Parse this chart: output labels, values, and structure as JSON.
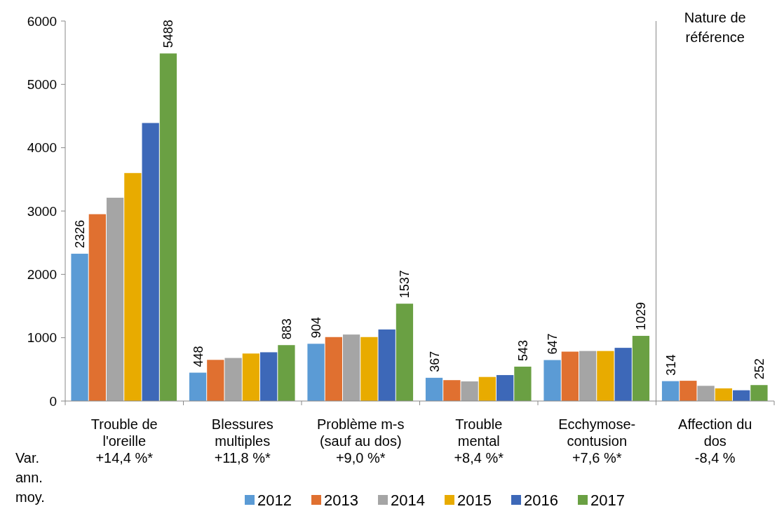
{
  "chart_data": {
    "type": "bar",
    "categories": [
      "Trouble de\nl'oreille\n+14,4 %*",
      "Blessures\nmultiples\n+11,8 %*",
      "Problème m-s\n(sauf au dos)\n+9,0 %*",
      "Trouble\nmental\n+8,4 %*",
      "Ecchymose-\ncontusion\n+7,6 %*",
      "Affection du\ndos\n-8,4 %"
    ],
    "series": [
      {
        "name": "2012",
        "color": "#5b9bd5",
        "values": [
          2326,
          448,
          904,
          367,
          647,
          314
        ],
        "value_labels": [
          "2326",
          "448",
          "904",
          "367",
          "647",
          "314"
        ]
      },
      {
        "name": "2013",
        "color": "#e07030",
        "values": [
          2950,
          650,
          1010,
          330,
          780,
          320
        ]
      },
      {
        "name": "2014",
        "color": "#a5a5a5",
        "values": [
          3210,
          680,
          1050,
          310,
          790,
          240
        ]
      },
      {
        "name": "2015",
        "color": "#e8ab00",
        "values": [
          3600,
          750,
          1010,
          380,
          790,
          200
        ]
      },
      {
        "name": "2016",
        "color": "#3d68b8",
        "values": [
          4390,
          770,
          1130,
          410,
          840,
          170
        ]
      },
      {
        "name": "2017",
        "color": "#6aa043",
        "values": [
          5488,
          883,
          1537,
          543,
          1029,
          252
        ],
        "value_labels": [
          "5488",
          "883",
          "1537",
          "543",
          "1029",
          "252"
        ]
      }
    ],
    "ylim": [
      0,
      6000
    ],
    "yticks": [
      0,
      1000,
      2000,
      3000,
      4000,
      5000,
      6000
    ],
    "legend": "bottom",
    "grid": false,
    "annotations": [
      "Nature de\nréférence",
      "Var.\nann.\nmoy."
    ]
  }
}
